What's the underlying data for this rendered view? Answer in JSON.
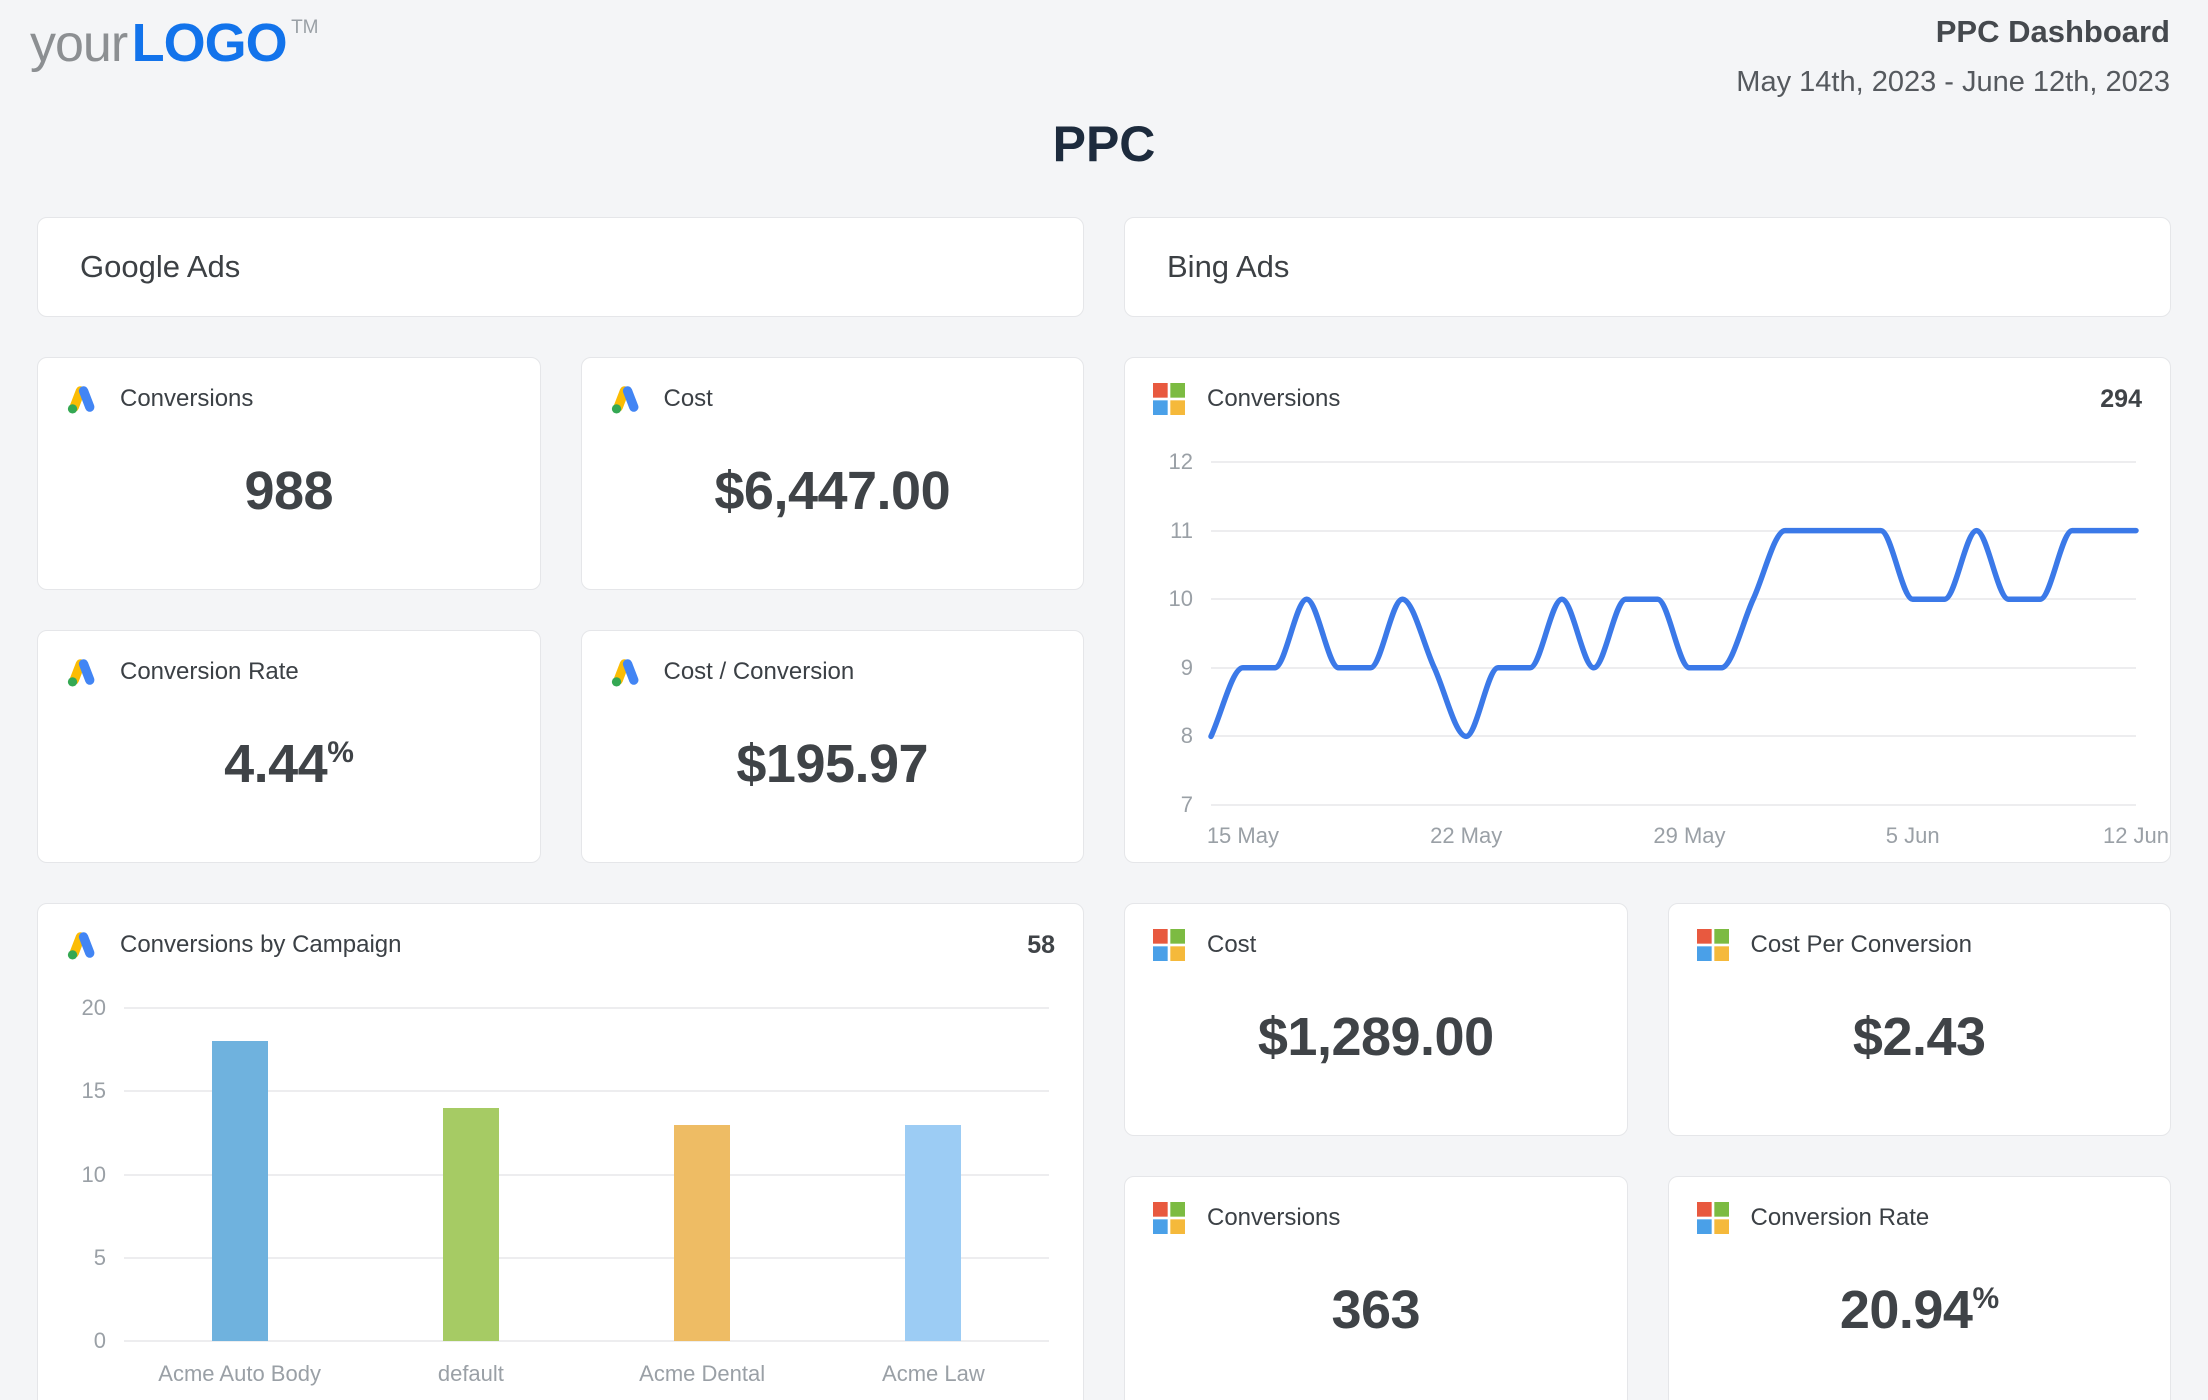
{
  "header": {
    "logo_your": "your",
    "logo_word": "LOGO",
    "logo_tm": "TM",
    "title": "PPC Dashboard",
    "date_range": "May 14th, 2023 - June 12th, 2023"
  },
  "page_title": "PPC",
  "colors": {
    "background": "#f4f5f7",
    "card_border": "#e5e6e9",
    "accent_blue": "#1273eb",
    "line_blue": "#3b79e8",
    "axis_text": "#9aa0a6",
    "value_text": "#3f4347",
    "title_navy": "#1d2b3d"
  },
  "google": {
    "section_title": "Google Ads",
    "icon": "google-ads-icon",
    "stats": [
      {
        "label": "Conversions",
        "value": "988",
        "suffix": ""
      },
      {
        "label": "Cost",
        "value": "$6,447.00",
        "suffix": ""
      },
      {
        "label": "Conversion Rate",
        "value": "4.44",
        "suffix": "%"
      },
      {
        "label": "Cost / Conversion",
        "value": "$195.97",
        "suffix": ""
      }
    ]
  },
  "bing": {
    "section_title": "Bing Ads",
    "icon": "microsoft-icon",
    "stats": [
      {
        "label": "Cost",
        "value": "$1,289.00",
        "suffix": ""
      },
      {
        "label": "Cost Per Conversion",
        "value": "$2.43",
        "suffix": ""
      },
      {
        "label": "Conversions",
        "value": "363",
        "suffix": ""
      },
      {
        "label": "Conversion Rate",
        "value": "20.94",
        "suffix": "%"
      }
    ]
  },
  "chart_data": [
    {
      "type": "line",
      "title": "Conversions",
      "total_label": "294",
      "source": "Bing Ads",
      "x": [
        "14 May",
        "15 May",
        "16 May",
        "17 May",
        "18 May",
        "19 May",
        "20 May",
        "21 May",
        "22 May",
        "23 May",
        "24 May",
        "25 May",
        "26 May",
        "27 May",
        "28 May",
        "29 May",
        "30 May",
        "31 May",
        "1 Jun",
        "2 Jun",
        "3 Jun",
        "4 Jun",
        "5 Jun",
        "6 Jun",
        "7 Jun",
        "8 Jun",
        "9 Jun",
        "10 Jun",
        "11 Jun",
        "12 Jun"
      ],
      "values": [
        8,
        9,
        9,
        10,
        9,
        9,
        10,
        9,
        8,
        9,
        9,
        10,
        9,
        10,
        10,
        9,
        9,
        10,
        11,
        11,
        11,
        11,
        10,
        10,
        11,
        10,
        10,
        11,
        11,
        11
      ],
      "ylim": [
        7,
        12
      ],
      "yticks": [
        12,
        11,
        10,
        9,
        8,
        7
      ],
      "xticks": [
        {
          "label": "15 May",
          "day": 1
        },
        {
          "label": "22 May",
          "day": 8
        },
        {
          "label": "29 May",
          "day": 15
        },
        {
          "label": "5 Jun",
          "day": 22
        },
        {
          "label": "12 Jun",
          "day": 29
        }
      ],
      "line_color": "#3b79e8",
      "grid": "horizontal-only",
      "legend": "none"
    },
    {
      "type": "bar",
      "title": "Conversions by Campaign",
      "total_label": "58",
      "source": "Google Ads",
      "categories": [
        "Acme Auto Body",
        "default",
        "Acme Dental",
        "Acme Law"
      ],
      "values": [
        18,
        14,
        13,
        13
      ],
      "bar_colors": [
        "#6FB2DE",
        "#A6CB64",
        "#EEBC64",
        "#9CCCF4"
      ],
      "ylim": [
        0,
        20
      ],
      "yticks": [
        20,
        15,
        10,
        5,
        0
      ],
      "grid": "horizontal-only",
      "legend": "none"
    }
  ]
}
